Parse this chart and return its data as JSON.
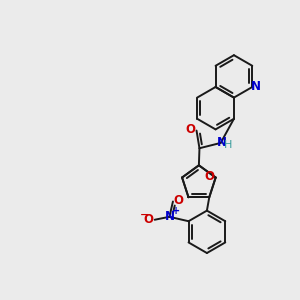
{
  "background_color": "#ebebeb",
  "bond_color": "#1a1a1a",
  "N_color": "#0000cc",
  "O_color": "#cc0000",
  "NH_color": "#3d9e9e",
  "figsize": [
    3.0,
    3.0
  ],
  "dpi": 100,
  "xlim": [
    0,
    10
  ],
  "ylim": [
    0,
    10
  ]
}
